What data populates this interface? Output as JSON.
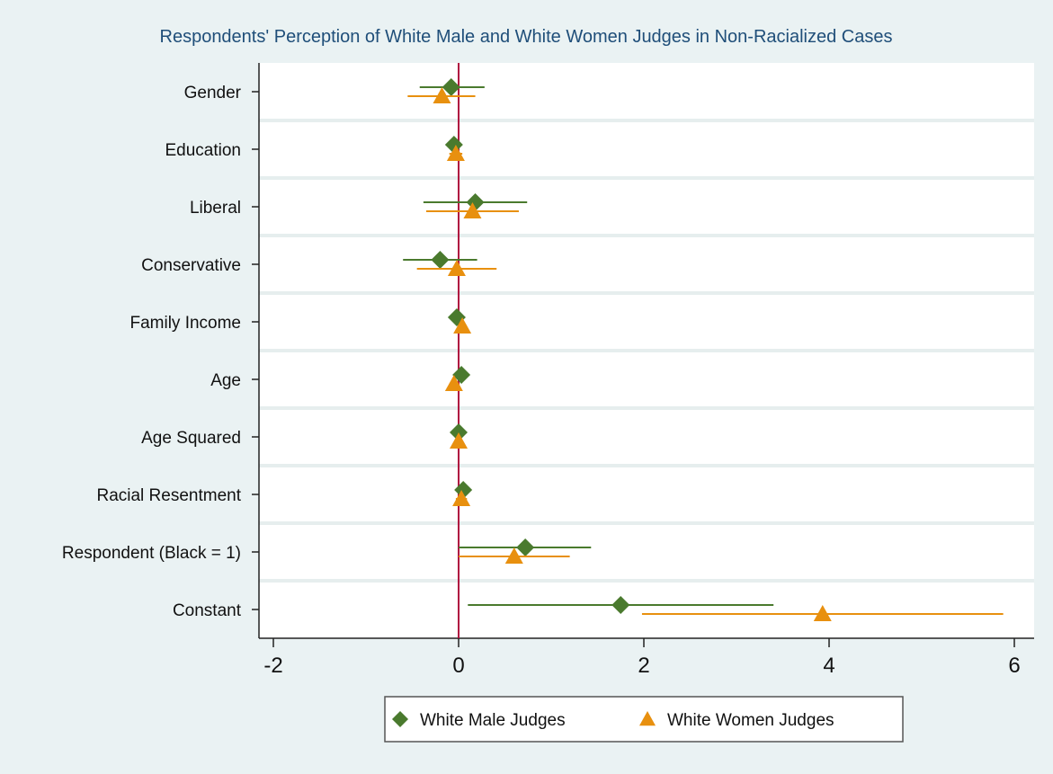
{
  "chart_data": {
    "type": "scatter",
    "title": "Respondents' Perception of White Male and White Women Judges in Non-Racialized Cases",
    "xlabel": "",
    "ylabel": "",
    "xlim": [
      -2.1,
      6.1
    ],
    "xticks": [
      -2,
      0,
      2,
      4,
      6
    ],
    "categories": [
      "Gender",
      "Education",
      "Liberal",
      "Conservative",
      "Family Income",
      "Age",
      "Age Squared",
      "Racial Resentment",
      "Respondent (Black = 1)",
      "Constant"
    ],
    "reference_line": 0,
    "legend_position": "bottom",
    "series": [
      {
        "name": "White Male Judges",
        "marker": "diamond",
        "color": "#4a7a2e",
        "points": [
          {
            "est": -0.08,
            "lo": -0.42,
            "hi": 0.28
          },
          {
            "est": -0.05,
            "lo": -0.12,
            "hi": 0.02
          },
          {
            "est": 0.18,
            "lo": -0.38,
            "hi": 0.74
          },
          {
            "est": -0.2,
            "lo": -0.6,
            "hi": 0.2
          },
          {
            "est": -0.02,
            "lo": -0.06,
            "hi": 0.02
          },
          {
            "est": 0.03,
            "lo": -0.01,
            "hi": 0.07
          },
          {
            "est": 0.0,
            "lo": -0.01,
            "hi": 0.01
          },
          {
            "est": 0.05,
            "lo": -0.01,
            "hi": 0.11
          },
          {
            "est": 0.72,
            "lo": 0.0,
            "hi": 1.43
          },
          {
            "est": 1.75,
            "lo": 0.1,
            "hi": 3.4
          }
        ]
      },
      {
        "name": "White Women Judges",
        "marker": "triangle",
        "color": "#e8900f",
        "points": [
          {
            "est": -0.18,
            "lo": -0.55,
            "hi": 0.18
          },
          {
            "est": -0.03,
            "lo": -0.1,
            "hi": 0.04
          },
          {
            "est": 0.15,
            "lo": -0.35,
            "hi": 0.65
          },
          {
            "est": -0.02,
            "lo": -0.45,
            "hi": 0.41
          },
          {
            "est": 0.04,
            "lo": 0.0,
            "hi": 0.08
          },
          {
            "est": -0.05,
            "lo": -0.09,
            "hi": -0.01
          },
          {
            "est": 0.0,
            "lo": -0.01,
            "hi": 0.01
          },
          {
            "est": 0.03,
            "lo": -0.03,
            "hi": 0.09
          },
          {
            "est": 0.6,
            "lo": 0.0,
            "hi": 1.2
          },
          {
            "est": 3.93,
            "lo": 1.98,
            "hi": 5.88
          }
        ]
      }
    ]
  }
}
